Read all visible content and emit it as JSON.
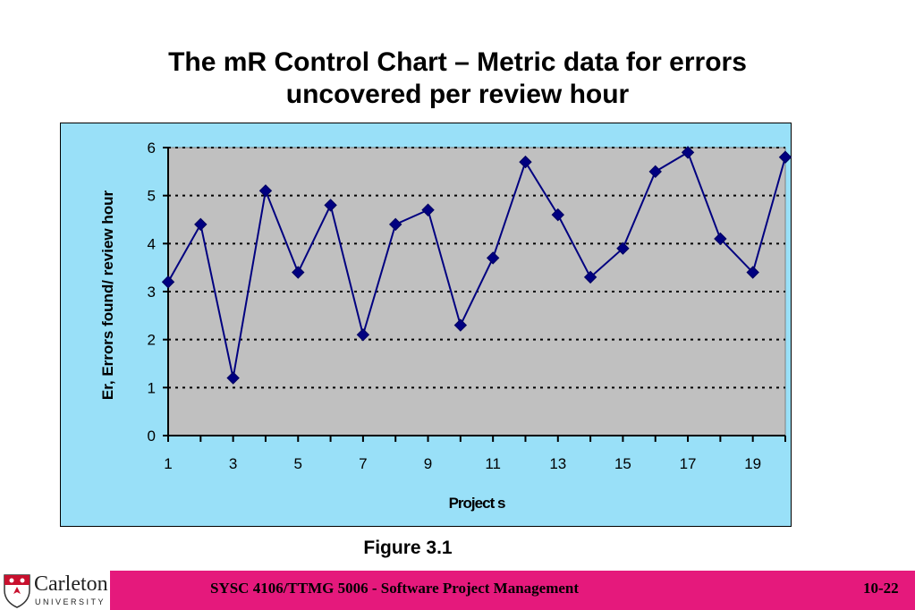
{
  "slide": {
    "title_line1": "The mR Control Chart – Metric data for errors",
    "title_line2": "uncovered per review hour",
    "caption": "Figure 3.1",
    "footer_text": "SYSC 4106/TTMG 5006 - Software Project Management",
    "page_number": "10-22",
    "logo_name": "Carleton",
    "logo_sub": "UNIVERSITY",
    "colors": {
      "chart_background": "#99e0f8",
      "plot_area": "#c0c0c0",
      "series": "#000080",
      "footer_bar": "#e5197c"
    }
  },
  "chart_data": {
    "type": "line",
    "title": "",
    "xlabel": "Project  s",
    "ylabel": "Er,  Errors found/  review hour",
    "x": [
      1,
      2,
      3,
      4,
      5,
      6,
      7,
      8,
      9,
      10,
      11,
      12,
      13,
      14,
      15,
      16,
      17,
      18,
      19,
      20
    ],
    "values": [
      3.2,
      4.4,
      1.2,
      5.1,
      3.4,
      4.8,
      2.1,
      4.4,
      4.7,
      2.3,
      3.7,
      5.7,
      4.6,
      3.3,
      3.9,
      5.5,
      5.9,
      4.1,
      3.4,
      5.8
    ],
    "xticks": [
      "1",
      "3",
      "5",
      "7",
      "9",
      "11",
      "13",
      "15",
      "17",
      "19"
    ],
    "yticks": [
      "0",
      "1",
      "2",
      "3",
      "4",
      "5",
      "6"
    ],
    "ylim": [
      0,
      6
    ],
    "xlim": [
      1,
      20
    ],
    "grid": "horizontal dotted",
    "marker": "diamond",
    "legend": "none"
  }
}
